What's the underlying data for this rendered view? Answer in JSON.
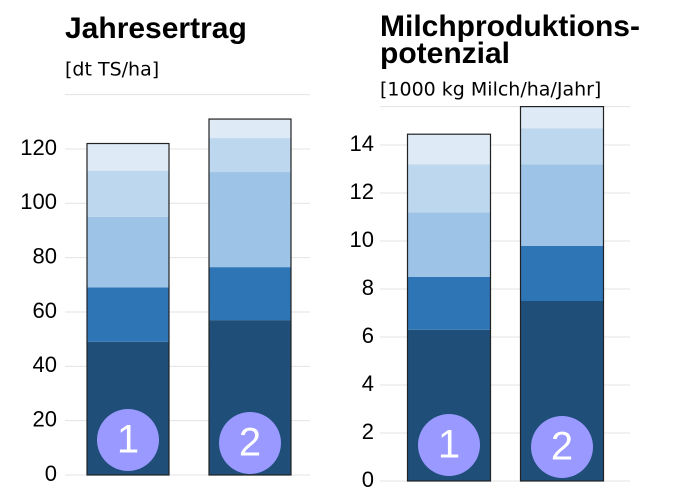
{
  "chart_data": [
    {
      "type": "bar",
      "stacked": true,
      "title": "Jahresertrag",
      "subtitle": "[dt TS/ha]",
      "categories": [
        "1",
        "2"
      ],
      "series": [
        {
          "color": "#1f4e79",
          "values": [
            49,
            57
          ]
        },
        {
          "color": "#2e75b6",
          "values": [
            20,
            19.5
          ]
        },
        {
          "color": "#9dc3e6",
          "values": [
            26,
            35
          ]
        },
        {
          "color": "#bdd7ee",
          "values": [
            17,
            12.5
          ]
        },
        {
          "color": "#deebf7",
          "values": [
            10,
            7
          ]
        }
      ],
      "ylim": [
        0,
        140
      ],
      "yticks": [
        0,
        20,
        40,
        60,
        80,
        100,
        120
      ],
      "grid": true
    },
    {
      "type": "bar",
      "stacked": true,
      "title": [
        "Milchproduktions-",
        "potenzial"
      ],
      "subtitle": "[1000 kg Milch/ha/Jahr]",
      "categories": [
        "1",
        "2"
      ],
      "series": [
        {
          "color": "#1f4e79",
          "values": [
            6.3,
            7.5
          ]
        },
        {
          "color": "#2e75b6",
          "values": [
            2.2,
            2.3
          ]
        },
        {
          "color": "#9dc3e6",
          "values": [
            2.7,
            3.4
          ]
        },
        {
          "color": "#bdd7ee",
          "values": [
            2.0,
            1.5
          ]
        },
        {
          "color": "#deebf7",
          "values": [
            1.25,
            0.9
          ]
        }
      ],
      "ylim": [
        0,
        15.6
      ],
      "yticks": [
        0,
        2,
        4,
        6,
        8,
        10,
        12,
        14
      ],
      "grid": true
    }
  ]
}
